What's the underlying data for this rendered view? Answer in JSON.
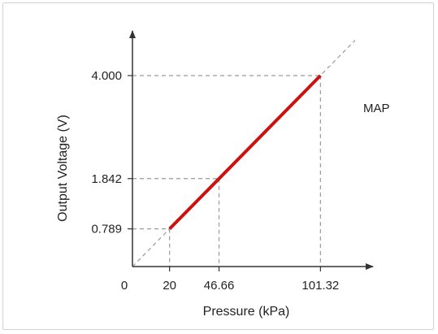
{
  "chart_data": {
    "type": "line",
    "title": "",
    "xlabel": "Pressure (kPa)",
    "ylabel": "Output Voltage (V)",
    "annotation": "MAP",
    "origin_label": "0",
    "x_ticks": [
      "20",
      "46.66",
      "101.32"
    ],
    "y_ticks": [
      "0.789",
      "1.842",
      "4.000"
    ],
    "xlim": [
      0,
      120
    ],
    "ylim": [
      0,
      4.8
    ],
    "series": [
      {
        "x": [
          20,
          101.32
        ],
        "y": [
          0.789,
          4.0
        ],
        "color": "#cc1111"
      }
    ],
    "reference_line": {
      "x": [
        0,
        120
      ],
      "y": [
        0,
        4.74
      ]
    },
    "guides": [
      {
        "x": 20,
        "y": 0.789
      },
      {
        "x": 46.66,
        "y": 1.842
      },
      {
        "x": 101.32,
        "y": 4.0
      }
    ],
    "grid": false
  }
}
